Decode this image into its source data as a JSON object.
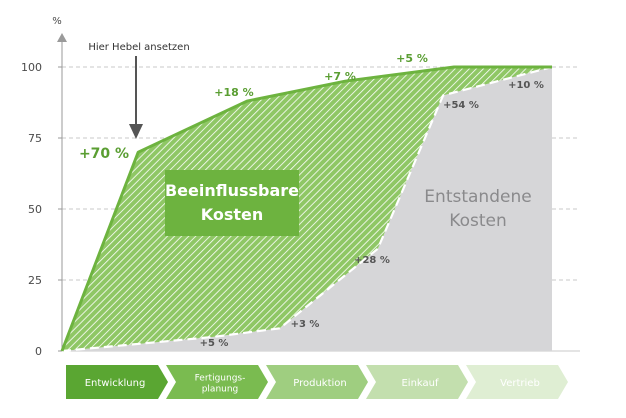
{
  "chart_data": {
    "type": "area",
    "y_unit_label": "%",
    "ylim": [
      0,
      100
    ],
    "y_ticks": [
      "0",
      "25",
      "50",
      "75",
      "100"
    ],
    "grid": true,
    "phases": [
      "Entwicklung",
      "Fertigungs-\nplanung",
      "Produktion",
      "Einkauf",
      "Vertrieb"
    ],
    "series": [
      {
        "name": "Beeinflussbare\nKosten",
        "x": [
          0,
          0.7,
          1.7,
          2.6,
          3.6,
          4.5
        ],
        "values": [
          0,
          70,
          88,
          95,
          100,
          100
        ]
      },
      {
        "name": "Entstandene\nKosten",
        "x": [
          0,
          1.4,
          2.0,
          2.9,
          3.5,
          4.5
        ],
        "values": [
          0,
          5,
          8,
          36,
          90,
          100
        ]
      }
    ],
    "annotations": {
      "influence": [
        "+70 %",
        "+18 %",
        "+7 %",
        "+5 %"
      ],
      "incurred": [
        "+5 %",
        "+3 %",
        "+28 %",
        "+54 %",
        "+10 %"
      ],
      "pointer": "Hier Hebel ansetzen"
    },
    "colors": {
      "green": "#6db33f",
      "dark_green": "#5a9e32",
      "gray_area": "#d6d6d8",
      "gray_text": "#8a8a8c",
      "axis_text": "#4a4a4a"
    }
  }
}
